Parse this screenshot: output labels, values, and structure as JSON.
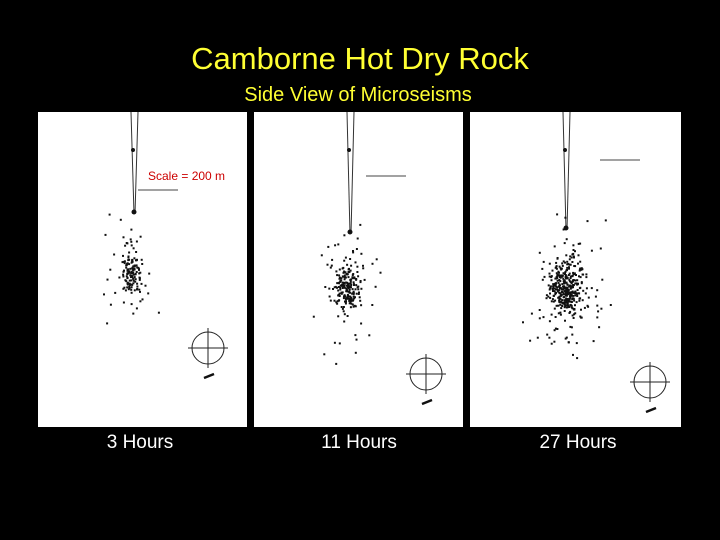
{
  "title": "Camborne Hot Dry Rock",
  "subtitle": "Side View of Microseisms",
  "panels": [
    {
      "label": "3 Hours",
      "scale_label": "Scale = 200 m",
      "seed": 7,
      "n": 150
    },
    {
      "label": "11 Hours",
      "seed": 19,
      "n": 230
    },
    {
      "label": "27 Hours",
      "seed": 43,
      "n": 420
    }
  ],
  "colors": {
    "title": "#ffff33",
    "scale_label": "#cc0000"
  }
}
